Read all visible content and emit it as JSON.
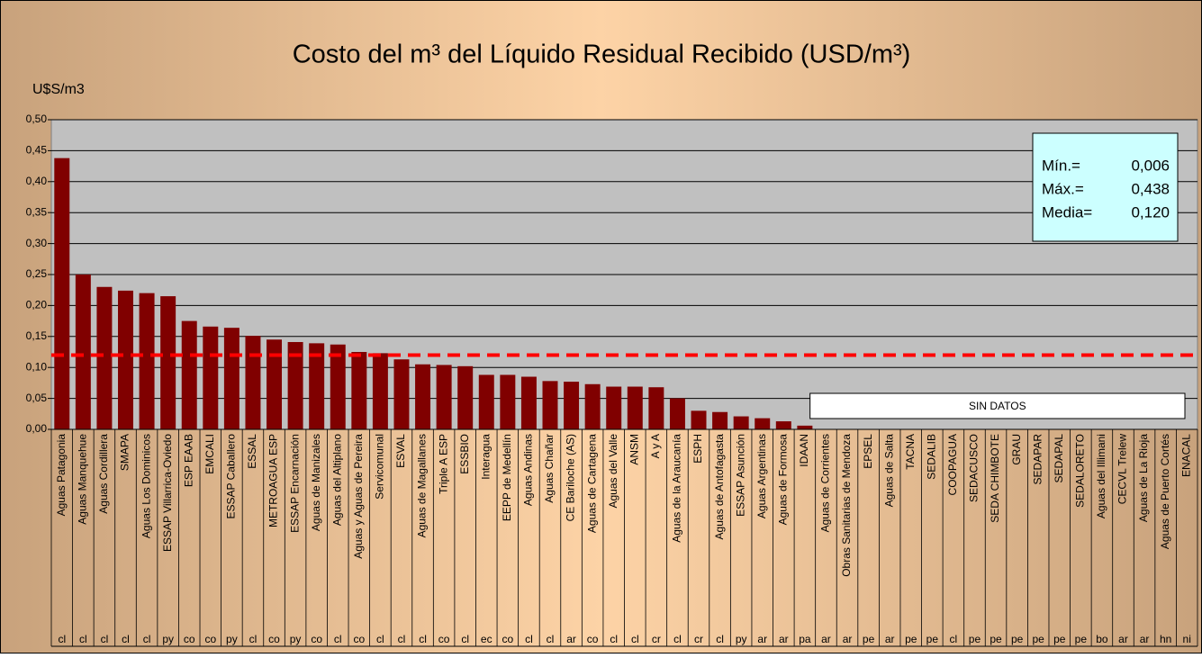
{
  "chart_data": {
    "type": "bar",
    "title": "Costo del m³ del Líquido Residual Recibido (USD/m³)",
    "y_label": "U$S/m3",
    "color": "#800000",
    "categories": [
      "Aguas Patagonia",
      "Aguas Manquehue",
      "Aguas Cordillera",
      "SMAPA",
      "Aguas Los Dominicos",
      "ESSAP Villarrica-Oviedo",
      "ESP EAAB",
      "EMCALI",
      "ESSAP Caballero",
      "ESSAL",
      "METROAGUA ESP",
      "ESSAP Encarnación",
      "Aguas de Manizales",
      "Aguas del Altiplano",
      "Aguas y Aguas de Pereira",
      "Servicomunal",
      "ESVAL",
      "Aguas de Magallanes",
      "Triple A ESP",
      "ESSBIO",
      "Interagua",
      "EEPP de Medellín",
      "Aguas Andinas",
      "Aguas Chañar",
      "CE Bariloche (AS)",
      "Aguas de Cartagena",
      "Aguas del Valle",
      "ANSM",
      "A y A",
      "Aguas de la Araucanía",
      "ESPH",
      "Aguas de Antofagasta",
      "ESSAP Asunción",
      "Aguas Argentinas",
      "Aguas de Formosa",
      "IDAAN",
      "Aguas de Corrientes",
      "Obras Sanitarias de Mendoza",
      "EPSEL",
      "Aguas de Salta",
      "TACNA",
      "SEDALIB",
      "COOPAGUA",
      "SEDACUSCO",
      "SEDA CHIMBOTE",
      "GRAU",
      "SEDAPAR",
      "SEDAPAL",
      "SEDALORETO",
      "Aguas del Illimani",
      "CECVL Trelew",
      "Aguas de La Rioja",
      "Aguas de Puerto Cortés",
      "ENACAL"
    ],
    "countries": [
      "cl",
      "cl",
      "cl",
      "cl",
      "cl",
      "py",
      "co",
      "co",
      "py",
      "cl",
      "co",
      "py",
      "co",
      "cl",
      "co",
      "cl",
      "cl",
      "cl",
      "co",
      "cl",
      "ec",
      "co",
      "cl",
      "cl",
      "ar",
      "co",
      "cl",
      "cl",
      "cr",
      "cl",
      "cr",
      "cl",
      "py",
      "ar",
      "ar",
      "pa",
      "ar",
      "ar",
      "pe",
      "ar",
      "pe",
      "pe",
      "cl",
      "pe",
      "pe",
      "pe",
      "pe",
      "pe",
      "pe",
      "bo",
      "ar",
      "ar",
      "hn",
      "ni"
    ],
    "values": [
      0.438,
      0.25,
      0.23,
      0.224,
      0.22,
      0.215,
      0.175,
      0.166,
      0.164,
      0.151,
      0.145,
      0.141,
      0.139,
      0.137,
      0.125,
      0.123,
      0.113,
      0.105,
      0.104,
      0.102,
      0.088,
      0.088,
      0.085,
      0.078,
      0.077,
      0.073,
      0.069,
      0.069,
      0.068,
      0.05,
      0.03,
      0.028,
      0.021,
      0.018,
      0.013,
      0.006,
      null,
      null,
      null,
      null,
      null,
      null,
      null,
      null,
      null,
      null,
      null,
      null,
      null,
      null,
      null,
      null,
      null,
      null
    ],
    "ylim": [
      0,
      0.5
    ],
    "yticks": [
      {
        "value": 0,
        "label": "0,00"
      },
      {
        "value": 0.05,
        "label": "0,05"
      },
      {
        "value": 0.1,
        "label": "0,10"
      },
      {
        "value": 0.15,
        "label": "0,15"
      },
      {
        "value": 0.2,
        "label": "0,20"
      },
      {
        "value": 0.25,
        "label": "0,25"
      },
      {
        "value": 0.3,
        "label": "0,30"
      },
      {
        "value": 0.35,
        "label": "0,35"
      },
      {
        "value": 0.4,
        "label": "0,40"
      },
      {
        "value": 0.45,
        "label": "0,45"
      },
      {
        "value": 0.5,
        "label": "0,50"
      }
    ],
    "grid": true,
    "mean": 0.12,
    "mean_color": "#ff0000",
    "stats": [
      {
        "label": "Mín.=",
        "value_label": "0,006"
      },
      {
        "label": "Máx.=",
        "value_label": "0,438"
      },
      {
        "label": "Media=",
        "value_label": "0,120"
      }
    ],
    "no_data_label": "SIN DATOS"
  }
}
